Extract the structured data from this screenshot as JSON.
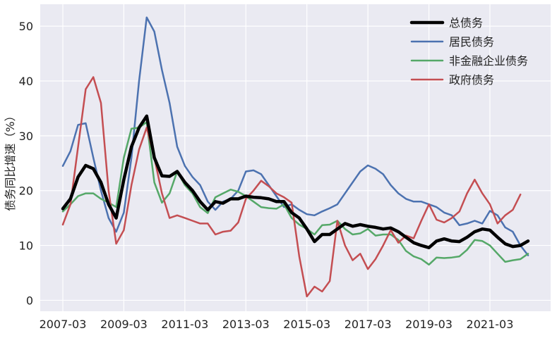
{
  "chart_data": {
    "type": "line",
    "title": "",
    "xlabel": "",
    "ylabel": "债务同比增速（%）",
    "ylim": [
      -2,
      54
    ],
    "yticks": [
      0,
      10,
      20,
      30,
      40,
      50
    ],
    "x_start": "2007-03",
    "x_end": "2022-06",
    "x_ticks": [
      "2007-03",
      "2009-03",
      "2011-03",
      "2013-03",
      "2015-03",
      "2017-03",
      "2019-03",
      "2021-03"
    ],
    "grid": true,
    "background": "#EAEAF2",
    "legend": {
      "placement": "top-right"
    },
    "x": [
      "2007-03",
      "2007-06",
      "2007-09",
      "2007-12",
      "2008-03",
      "2008-06",
      "2008-09",
      "2008-12",
      "2009-03",
      "2009-06",
      "2009-09",
      "2009-12",
      "2010-03",
      "2010-06",
      "2010-09",
      "2010-12",
      "2011-03",
      "2011-06",
      "2011-09",
      "2011-12",
      "2012-03",
      "2012-06",
      "2012-09",
      "2012-12",
      "2013-03",
      "2013-06",
      "2013-09",
      "2013-12",
      "2014-03",
      "2014-06",
      "2014-09",
      "2014-12",
      "2015-03",
      "2015-06",
      "2015-09",
      "2015-12",
      "2016-03",
      "2016-06",
      "2016-09",
      "2016-12",
      "2017-03",
      "2017-06",
      "2017-09",
      "2017-12",
      "2018-03",
      "2018-06",
      "2018-09",
      "2018-12",
      "2019-03",
      "2019-06",
      "2019-09",
      "2019-12",
      "2020-03",
      "2020-06",
      "2020-09",
      "2020-12",
      "2021-03",
      "2021-06",
      "2021-09",
      "2021-12",
      "2022-03",
      "2022-06"
    ],
    "series": [
      {
        "name": "总债务",
        "color": "#000000",
        "width": 4.5,
        "values": [
          16.7,
          18.5,
          22.5,
          24.6,
          24.0,
          21.5,
          17.5,
          15.0,
          22.0,
          28.0,
          31.5,
          33.6,
          26.0,
          22.7,
          22.6,
          23.5,
          21.5,
          20.0,
          18.0,
          16.5,
          18.0,
          17.7,
          18.5,
          18.5,
          19.0,
          18.8,
          18.7,
          18.5,
          18.0,
          18.0,
          16.0,
          15.0,
          13.0,
          10.7,
          12.0,
          12.0,
          13.0,
          14.0,
          13.5,
          13.8,
          13.5,
          13.3,
          13.0,
          13.2,
          12.5,
          11.5,
          10.5,
          10.0,
          9.6,
          10.8,
          11.2,
          10.8,
          10.7,
          11.5,
          12.5,
          13.0,
          12.8,
          11.5,
          10.3,
          9.8,
          10.0,
          10.8
        ]
      },
      {
        "name": "居民债务",
        "color": "#4C72B0",
        "width": 2.5,
        "values": [
          24.5,
          27.2,
          32.0,
          32.3,
          26.0,
          20.0,
          15.0,
          12.5,
          16.0,
          26.0,
          40.0,
          51.6,
          49.0,
          42.0,
          36.0,
          28.0,
          24.5,
          22.5,
          21.0,
          18.0,
          16.5,
          18.0,
          18.5,
          20.0,
          23.5,
          23.7,
          23.0,
          21.0,
          19.0,
          17.0,
          17.5,
          16.5,
          15.7,
          15.5,
          16.2,
          16.8,
          17.5,
          19.5,
          21.5,
          23.5,
          24.6,
          24.0,
          23.0,
          21.0,
          19.5,
          18.5,
          18.0,
          18.0,
          17.5,
          17.0,
          16.0,
          15.5,
          13.7,
          14.0,
          14.5,
          14.0,
          16.3,
          15.5,
          13.3,
          12.5,
          10.0,
          8.2
        ]
      },
      {
        "name": "非金融企业债务",
        "color": "#55A868",
        "width": 2.5,
        "values": [
          16.2,
          17.5,
          19.0,
          19.5,
          19.5,
          18.5,
          17.8,
          17.0,
          26.0,
          31.3,
          31.5,
          32.5,
          21.5,
          17.8,
          19.5,
          23.5,
          21.0,
          19.5,
          17.0,
          15.9,
          18.8,
          19.5,
          20.2,
          19.8,
          19.0,
          18.0,
          17.0,
          16.8,
          16.7,
          17.5,
          15.0,
          13.8,
          13.0,
          12.0,
          13.7,
          13.8,
          14.5,
          13.0,
          12.0,
          12.2,
          13.0,
          11.8,
          12.0,
          12.0,
          11.0,
          9.0,
          8.0,
          7.5,
          6.5,
          7.8,
          7.7,
          7.8,
          8.0,
          9.2,
          11.0,
          10.8,
          10.0,
          8.5,
          7.0,
          7.3,
          7.5,
          8.5
        ]
      },
      {
        "name": "政府债务",
        "color": "#C44E52",
        "width": 2.5,
        "values": [
          13.8,
          17.5,
          28.0,
          38.5,
          40.7,
          36.0,
          20.0,
          10.3,
          12.8,
          21.0,
          27.5,
          31.5,
          26.0,
          19.5,
          15.0,
          15.5,
          15.0,
          14.5,
          14.0,
          14.0,
          12.0,
          12.5,
          12.7,
          14.2,
          18.5,
          20.0,
          21.8,
          20.8,
          19.5,
          18.8,
          17.8,
          8.0,
          0.7,
          2.5,
          1.6,
          3.5,
          14.5,
          10.0,
          7.3,
          8.5,
          5.7,
          7.5,
          10.0,
          12.8,
          10.5,
          11.8,
          11.3,
          14.5,
          17.5,
          14.7,
          14.2,
          15.0,
          16.2,
          19.5,
          22.0,
          19.5,
          17.5,
          14.0,
          15.5,
          16.5,
          19.3,
          null
        ]
      }
    ]
  }
}
